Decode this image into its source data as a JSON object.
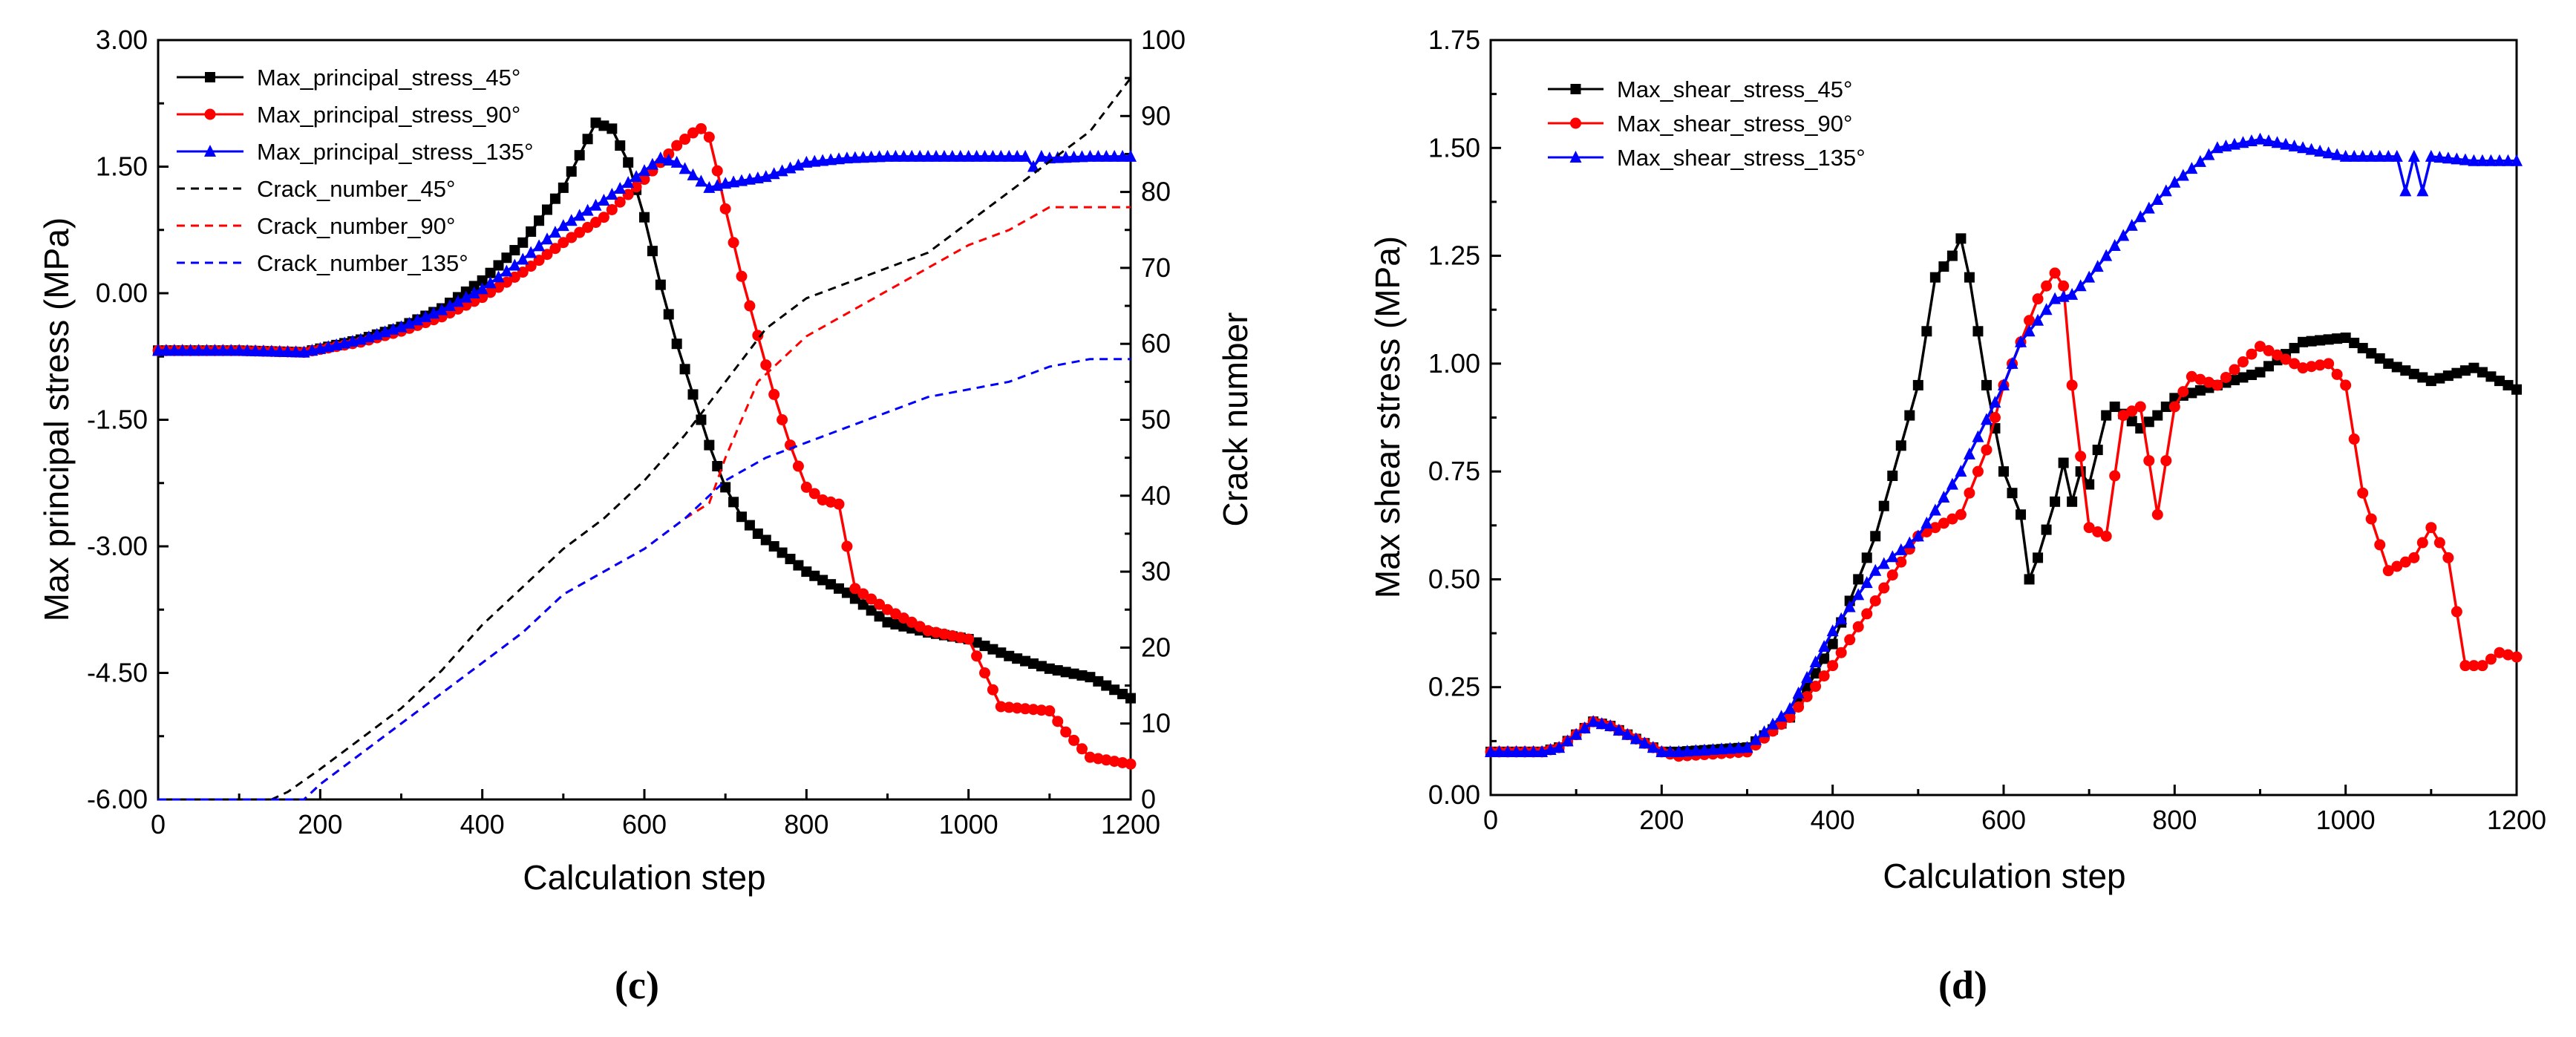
{
  "chart_data": [
    {
      "type": "line",
      "panel_label": "(c)",
      "xlabel": "Calculation step",
      "ylabel": "Max principal stress (MPa)",
      "y2label": "Crack number",
      "xlim": [
        0,
        1200
      ],
      "ylim": [
        -6.0,
        3.0
      ],
      "y2lim": [
        0,
        100
      ],
      "xticks": [
        "0",
        "200",
        "400",
        "600",
        "800",
        "1000",
        "1200"
      ],
      "yticks": [
        "-6.00",
        "-4.50",
        "-3.00",
        "-1.50",
        "0.00",
        "1.50",
        "3.00"
      ],
      "y2ticks": [
        "0",
        "10",
        "20",
        "30",
        "40",
        "50",
        "60",
        "70",
        "80",
        "90",
        "100"
      ],
      "legend_position": "top-left",
      "series": [
        {
          "name": "Max_principal_stress_45°",
          "axis": "left",
          "color": "#000000",
          "marker": "square",
          "dash": "solid",
          "x": [
            0,
            100,
            180,
            250,
            300,
            350,
            400,
            450,
            500,
            540,
            560,
            580,
            600,
            620,
            640,
            660,
            680,
            700,
            720,
            740,
            760,
            800,
            850,
            900,
            950,
            1000,
            1050,
            1100,
            1150,
            1200
          ],
          "y": [
            -0.68,
            -0.68,
            -0.7,
            -0.55,
            -0.4,
            -0.18,
            0.15,
            0.6,
            1.25,
            2.02,
            1.95,
            1.55,
            0.9,
            0.1,
            -0.6,
            -1.2,
            -1.8,
            -2.3,
            -2.65,
            -2.85,
            -3.0,
            -3.3,
            -3.55,
            -3.9,
            -4.02,
            -4.1,
            -4.3,
            -4.45,
            -4.55,
            -4.8
          ]
        },
        {
          "name": "Max_principal_stress_90°",
          "axis": "left",
          "color": "#ff0000",
          "marker": "circle",
          "dash": "solid",
          "x": [
            0,
            100,
            180,
            250,
            300,
            350,
            400,
            450,
            500,
            550,
            600,
            640,
            660,
            670,
            680,
            690,
            700,
            720,
            740,
            760,
            780,
            800,
            820,
            840,
            860,
            900,
            950,
            1000,
            1020,
            1040,
            1100,
            1120,
            1150,
            1200
          ],
          "y": [
            -0.68,
            -0.68,
            -0.7,
            -0.58,
            -0.45,
            -0.28,
            -0.05,
            0.25,
            0.6,
            0.9,
            1.35,
            1.75,
            1.9,
            1.95,
            1.85,
            1.45,
            1.0,
            0.2,
            -0.5,
            -1.2,
            -1.8,
            -2.3,
            -2.45,
            -2.5,
            -3.5,
            -3.75,
            -4.0,
            -4.1,
            -4.5,
            -4.9,
            -4.95,
            -5.2,
            -5.5,
            -5.58
          ]
        },
        {
          "name": "Max_principal_stress_135°",
          "axis": "left",
          "color": "#0000ff",
          "marker": "triangle",
          "dash": "solid",
          "x": [
            0,
            100,
            180,
            250,
            300,
            350,
            400,
            450,
            500,
            550,
            600,
            620,
            640,
            660,
            680,
            700,
            750,
            800,
            850,
            900,
            1000,
            1070,
            1080,
            1090,
            1100,
            1150,
            1200
          ],
          "y": [
            -0.68,
            -0.68,
            -0.7,
            -0.55,
            -0.4,
            -0.2,
            0.05,
            0.4,
            0.8,
            1.1,
            1.45,
            1.6,
            1.55,
            1.4,
            1.25,
            1.3,
            1.38,
            1.55,
            1.6,
            1.62,
            1.62,
            1.62,
            1.5,
            1.62,
            1.6,
            1.62,
            1.62
          ]
        },
        {
          "name": "Crack_number_45°",
          "axis": "right",
          "color": "#000000",
          "marker": "none",
          "dash": "dashed",
          "x": [
            0,
            140,
            160,
            200,
            250,
            300,
            350,
            400,
            450,
            500,
            550,
            600,
            650,
            700,
            750,
            800,
            850,
            900,
            950,
            1000,
            1050,
            1100,
            1150,
            1200
          ],
          "y": [
            0,
            0,
            1,
            4,
            8,
            12,
            17,
            23,
            28,
            33,
            37,
            42,
            48,
            55,
            62,
            66,
            68,
            70,
            72,
            76,
            80,
            84,
            88,
            95
          ]
        },
        {
          "name": "Crack_number_90°",
          "axis": "right",
          "color": "#ff0000",
          "marker": "none",
          "dash": "dashed",
          "x": [
            0,
            180,
            200,
            250,
            300,
            350,
            400,
            450,
            500,
            550,
            600,
            650,
            680,
            700,
            720,
            740,
            760,
            780,
            800,
            850,
            900,
            950,
            1000,
            1050,
            1100,
            1150,
            1200
          ],
          "y": [
            0,
            0,
            2,
            6,
            10,
            14,
            18,
            22,
            27,
            30,
            33,
            37,
            39,
            45,
            50,
            55,
            57,
            59,
            61,
            64,
            67,
            70,
            73,
            75,
            78,
            78,
            78
          ]
        },
        {
          "name": "Crack_number_135°",
          "axis": "right",
          "color": "#0000ff",
          "marker": "none",
          "dash": "dashed",
          "x": [
            0,
            180,
            200,
            250,
            300,
            350,
            400,
            450,
            500,
            550,
            600,
            650,
            700,
            750,
            800,
            850,
            900,
            950,
            1000,
            1050,
            1100,
            1150,
            1200
          ],
          "y": [
            0,
            0,
            2,
            6,
            10,
            14,
            18,
            22,
            27,
            30,
            33,
            37,
            42,
            45,
            47,
            49,
            51,
            53,
            54,
            55,
            57,
            58,
            58
          ]
        }
      ]
    },
    {
      "type": "line",
      "panel_label": "(d)",
      "xlabel": "Calculation step",
      "ylabel": "Max shear stress (MPa)",
      "xlim": [
        0,
        1200
      ],
      "ylim": [
        0.0,
        1.75
      ],
      "xticks": [
        "0",
        "200",
        "400",
        "600",
        "800",
        "1000",
        "1200"
      ],
      "yticks": [
        "0.00",
        "0.25",
        "0.50",
        "0.75",
        "1.00",
        "1.25",
        "1.50",
        "1.75"
      ],
      "legend_position": "top-left",
      "series": [
        {
          "name": "Max_shear_stress_45°",
          "color": "#000000",
          "marker": "square",
          "x": [
            0,
            60,
            80,
            100,
            120,
            140,
            160,
            200,
            220,
            300,
            350,
            400,
            450,
            500,
            520,
            540,
            550,
            560,
            580,
            600,
            620,
            630,
            640,
            660,
            670,
            680,
            690,
            700,
            720,
            730,
            760,
            780,
            800,
            850,
            900,
            950,
            1000,
            1050,
            1100,
            1150,
            1200
          ],
          "y": [
            0.1,
            0.1,
            0.11,
            0.14,
            0.17,
            0.16,
            0.14,
            0.1,
            0.1,
            0.11,
            0.18,
            0.35,
            0.6,
            0.95,
            1.2,
            1.25,
            1.29,
            1.2,
            0.95,
            0.75,
            0.65,
            0.5,
            0.55,
            0.68,
            0.77,
            0.68,
            0.75,
            0.72,
            0.88,
            0.9,
            0.85,
            0.88,
            0.92,
            0.95,
            0.98,
            1.05,
            1.06,
            1.0,
            0.96,
            0.99,
            0.94
          ]
        },
        {
          "name": "Max_shear_stress_90°",
          "color": "#ff0000",
          "marker": "circle",
          "x": [
            0,
            60,
            80,
            100,
            120,
            140,
            160,
            200,
            220,
            300,
            350,
            400,
            450,
            500,
            550,
            580,
            600,
            620,
            640,
            660,
            670,
            680,
            700,
            720,
            740,
            760,
            780,
            800,
            820,
            850,
            900,
            950,
            980,
            1000,
            1020,
            1050,
            1080,
            1100,
            1120,
            1140,
            1160,
            1180,
            1200
          ],
          "y": [
            0.1,
            0.1,
            0.11,
            0.14,
            0.17,
            0.16,
            0.14,
            0.1,
            0.09,
            0.1,
            0.18,
            0.3,
            0.45,
            0.6,
            0.65,
            0.8,
            0.95,
            1.05,
            1.15,
            1.21,
            1.18,
            0.95,
            0.62,
            0.6,
            0.88,
            0.9,
            0.65,
            0.9,
            0.97,
            0.95,
            1.04,
            0.99,
            1.0,
            0.95,
            0.7,
            0.52,
            0.55,
            0.62,
            0.55,
            0.3,
            0.3,
            0.33,
            0.32
          ]
        },
        {
          "name": "Max_shear_stress_135°",
          "color": "#0000ff",
          "marker": "triangle",
          "x": [
            0,
            60,
            80,
            100,
            120,
            140,
            160,
            200,
            220,
            300,
            350,
            400,
            450,
            500,
            550,
            600,
            620,
            640,
            660,
            680,
            700,
            720,
            750,
            800,
            850,
            900,
            950,
            1000,
            1060,
            1070,
            1080,
            1090,
            1100,
            1150,
            1200
          ],
          "y": [
            0.1,
            0.1,
            0.11,
            0.14,
            0.17,
            0.16,
            0.14,
            0.1,
            0.1,
            0.11,
            0.2,
            0.38,
            0.52,
            0.6,
            0.75,
            0.95,
            1.05,
            1.1,
            1.15,
            1.16,
            1.2,
            1.25,
            1.32,
            1.42,
            1.5,
            1.52,
            1.5,
            1.48,
            1.48,
            1.4,
            1.48,
            1.4,
            1.48,
            1.47,
            1.47
          ]
        }
      ]
    }
  ]
}
